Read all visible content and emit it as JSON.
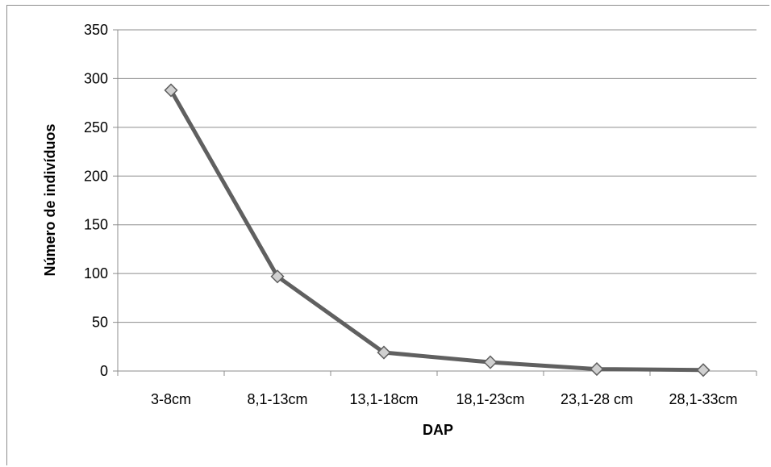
{
  "chart_data": {
    "type": "line",
    "title": "",
    "xlabel": "DAP",
    "ylabel": "Número de indivíduos",
    "categories": [
      "3-8cm",
      "8,1-13cm",
      "13,1-18cm",
      "18,1-23cm",
      "23,1-28 cm",
      "28,1-33cm"
    ],
    "series": [
      {
        "values": [
          288,
          97,
          19,
          9,
          2,
          1
        ]
      }
    ],
    "ylim": [
      0,
      350
    ],
    "yticks": [
      0,
      50,
      100,
      150,
      200,
      250,
      300,
      350
    ],
    "grid": true,
    "legend": "none",
    "colors": {
      "line": "#606060",
      "marker_fill": "#d0d0d0",
      "marker_stroke": "#606060",
      "grid": "#8c8c8c"
    }
  }
}
